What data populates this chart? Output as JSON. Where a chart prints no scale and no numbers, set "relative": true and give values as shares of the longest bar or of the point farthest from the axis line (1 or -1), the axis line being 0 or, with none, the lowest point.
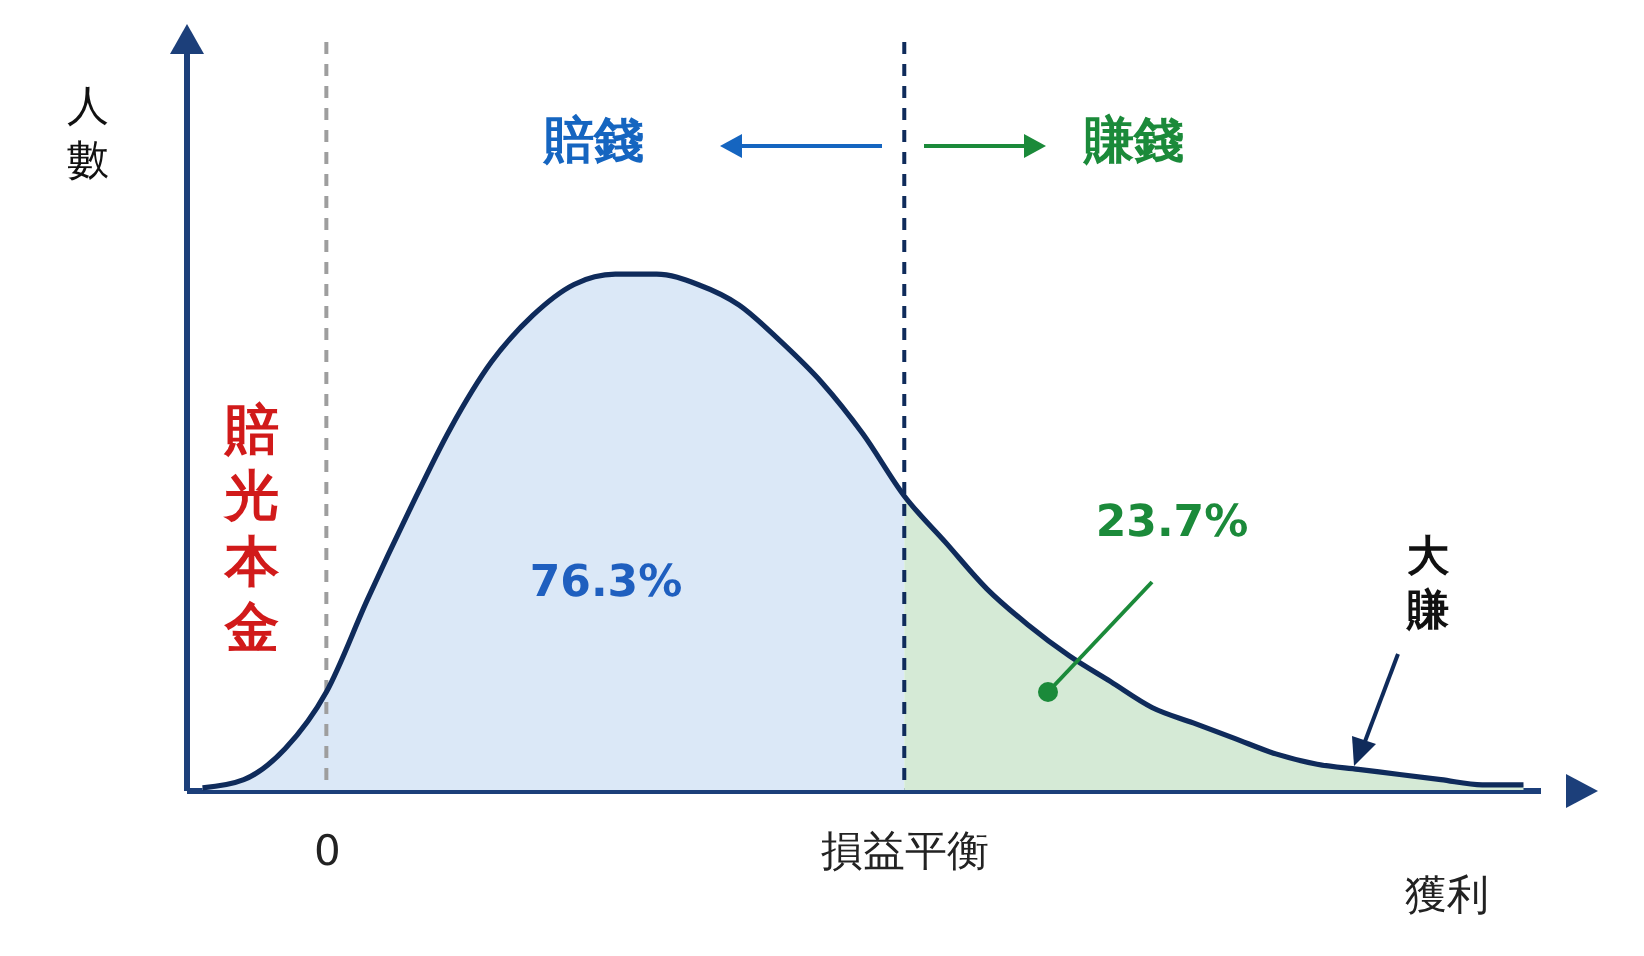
{
  "chart_data": {
    "type": "area",
    "relative": true,
    "ylabel": "人數",
    "xlabel": "獲利",
    "categories": [
      null,
      null,
      null,
      "0",
      null,
      null,
      null,
      null,
      null,
      null,
      null,
      null,
      null,
      null,
      null,
      null,
      null,
      "損益平衡",
      null,
      null,
      null,
      null,
      null,
      null,
      null,
      null,
      null,
      null,
      null,
      null,
      null,
      null,
      null
    ],
    "series": [
      {
        "color": "#dbe8f7",
        "values": [
          0.004,
          0.02,
          0.08,
          0.19,
          0.37,
          0.54,
          0.7,
          0.83,
          0.92,
          0.98,
          1.0,
          1.0,
          0.98,
          0.94,
          0.87,
          0.79,
          0.69,
          0.57,
          null,
          null,
          null,
          null,
          null,
          null,
          null,
          null,
          null,
          null,
          null,
          null,
          null,
          null,
          null
        ]
      },
      {
        "color": "#d5ead6",
        "values": [
          null,
          null,
          null,
          null,
          null,
          null,
          null,
          null,
          null,
          null,
          null,
          null,
          null,
          null,
          null,
          null,
          null,
          0.57,
          0.48,
          0.39,
          0.32,
          0.26,
          0.21,
          0.16,
          0.13,
          0.1,
          0.07,
          0.05,
          0.04,
          0.03,
          0.02,
          0.01,
          0.01
        ]
      },
      {
        "type": "line",
        "color": "#0f2b5b",
        "values": [
          0.004,
          0.02,
          0.08,
          0.19,
          0.37,
          0.54,
          0.7,
          0.83,
          0.92,
          0.98,
          1.0,
          1.0,
          0.98,
          0.94,
          0.87,
          0.79,
          0.69,
          0.57,
          0.48,
          0.39,
          0.32,
          0.26,
          0.21,
          0.16,
          0.13,
          0.1,
          0.07,
          0.05,
          0.04,
          0.03,
          0.02,
          0.01,
          0.01
        ]
      }
    ],
    "ref_lines": [
      {
        "axis": "x",
        "value": "0",
        "color": "#9e9e9e",
        "line_style": "dashed"
      },
      {
        "axis": "x",
        "value": "損益平衡",
        "color": "#0f2b5b",
        "line_style": "dashed"
      }
    ],
    "annotations": [
      "賠錢",
      "賺錢",
      "賠光本金",
      "76.3%",
      "23.7%",
      "大賺"
    ]
  }
}
